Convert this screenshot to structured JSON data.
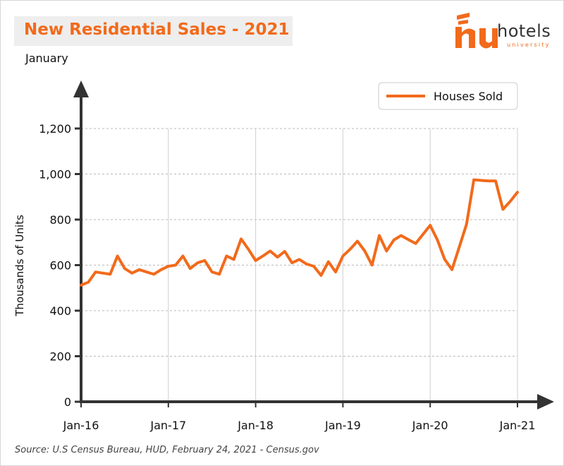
{
  "header": {
    "title": "New Residential Sales - 2021",
    "subtitle": "January"
  },
  "logo": {
    "word": "hotels",
    "sub": "university",
    "accent_color": "#f26a1b"
  },
  "source": "Source:  U.S Census Bureau, HUD, February 24, 2021 - Census.gov",
  "chart_data": {
    "type": "line",
    "title": "New Residential Sales - 2021",
    "subtitle": "January",
    "xlabel": "",
    "ylabel": "Thousands of Units",
    "ylim": [
      0,
      1200
    ],
    "yticks": [
      0,
      200,
      400,
      600,
      800,
      1000,
      1200
    ],
    "ytick_labels": [
      "0",
      "200",
      "400",
      "600",
      "800",
      "1,000",
      "1,200"
    ],
    "xtick_labels": [
      "Jan-16",
      "Jan-17",
      "Jan-18",
      "Jan-19",
      "Jan-20",
      "Jan-21"
    ],
    "grid": true,
    "legend_position": "top-right",
    "color": "#f26a1b",
    "series": [
      {
        "name": "Houses Sold",
        "x": [
          "Jan-16",
          "Feb-16",
          "Mar-16",
          "Apr-16",
          "May-16",
          "Jun-16",
          "Jul-16",
          "Aug-16",
          "Sep-16",
          "Oct-16",
          "Nov-16",
          "Dec-16",
          "Jan-17",
          "Feb-17",
          "Mar-17",
          "Apr-17",
          "May-17",
          "Jun-17",
          "Jul-17",
          "Aug-17",
          "Sep-17",
          "Oct-17",
          "Nov-17",
          "Dec-17",
          "Jan-18",
          "Feb-18",
          "Mar-18",
          "Apr-18",
          "May-18",
          "Jun-18",
          "Jul-18",
          "Aug-18",
          "Sep-18",
          "Oct-18",
          "Nov-18",
          "Dec-18",
          "Jan-19",
          "Feb-19",
          "Mar-19",
          "Apr-19",
          "May-19",
          "Jun-19",
          "Jul-19",
          "Aug-19",
          "Sep-19",
          "Oct-19",
          "Nov-19",
          "Dec-19",
          "Jan-20",
          "Feb-20",
          "Mar-20",
          "Apr-20",
          "May-20",
          "Jun-20",
          "Jul-20",
          "Aug-20",
          "Sep-20",
          "Oct-20",
          "Nov-20",
          "Dec-20",
          "Jan-21"
        ],
        "values": [
          512,
          525,
          570,
          565,
          560,
          640,
          585,
          565,
          580,
          570,
          560,
          580,
          595,
          600,
          640,
          585,
          610,
          620,
          570,
          560,
          640,
          625,
          715,
          670,
          620,
          640,
          662,
          635,
          660,
          610,
          625,
          605,
          595,
          555,
          615,
          570,
          640,
          670,
          705,
          662,
          600,
          730,
          662,
          710,
          730,
          712,
          695,
          735,
          775,
          710,
          625,
          580,
          680,
          780,
          975,
          972,
          970,
          970,
          845,
          880,
          920
        ]
      }
    ]
  }
}
